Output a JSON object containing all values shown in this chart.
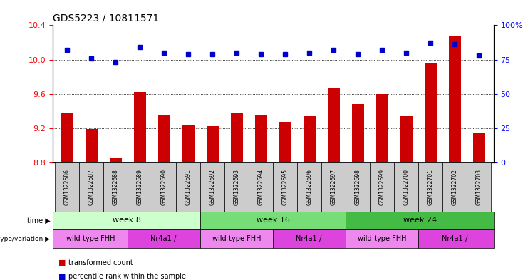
{
  "title": "GDS5223 / 10811571",
  "samples": [
    "GSM1322686",
    "GSM1322687",
    "GSM1322688",
    "GSM1322689",
    "GSM1322690",
    "GSM1322691",
    "GSM1322692",
    "GSM1322693",
    "GSM1322694",
    "GSM1322695",
    "GSM1322696",
    "GSM1322697",
    "GSM1322698",
    "GSM1322699",
    "GSM1322700",
    "GSM1322701",
    "GSM1322702",
    "GSM1322703"
  ],
  "red_values": [
    9.38,
    9.19,
    8.85,
    9.62,
    9.36,
    9.24,
    9.22,
    9.37,
    9.36,
    9.27,
    9.34,
    9.67,
    9.48,
    9.6,
    9.34,
    9.96,
    10.28,
    9.15
  ],
  "blue_values": [
    82,
    76,
    73,
    84,
    80,
    79,
    79,
    80,
    79,
    79,
    80,
    82,
    79,
    82,
    80,
    87,
    86,
    78
  ],
  "ylim_left": [
    8.8,
    10.4
  ],
  "ylim_right": [
    0,
    100
  ],
  "yticks_left": [
    8.8,
    9.2,
    9.6,
    10.0,
    10.4
  ],
  "yticks_right": [
    0,
    25,
    50,
    75,
    100
  ],
  "grid_values": [
    9.2,
    9.6,
    10.0
  ],
  "bar_color": "#cc0000",
  "dot_color": "#0000cc",
  "time_colors": [
    "#ccffcc",
    "#77dd77",
    "#44bb44"
  ],
  "time_labels": [
    "week 8",
    "week 16",
    "week 24"
  ],
  "time_boundaries": [
    0,
    6,
    12,
    18
  ],
  "geno_colors": [
    "#ee88ee",
    "#dd44dd",
    "#ee88ee",
    "#dd44dd",
    "#ee88ee",
    "#dd44dd"
  ],
  "geno_labels": [
    "wild-type FHH",
    "Nr4a1-/-",
    "wild-type FHH",
    "Nr4a1-/-",
    "wild-type FHH",
    "Nr4a1-/-"
  ],
  "geno_boundaries": [
    0,
    3,
    6,
    9,
    12,
    15,
    18
  ],
  "legend_items": [
    {
      "label": "transformed count",
      "color": "#cc0000"
    },
    {
      "label": "percentile rank within the sample",
      "color": "#0000cc"
    }
  ],
  "sample_box_color": "#cccccc",
  "bar_width": 0.5
}
